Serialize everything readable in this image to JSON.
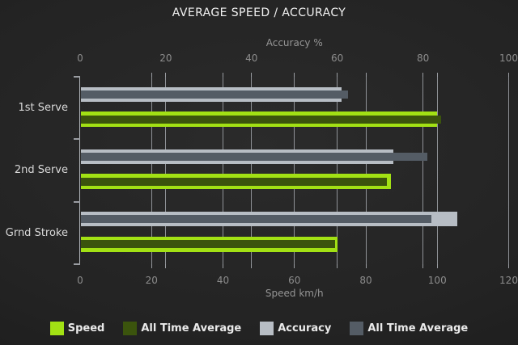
{
  "title": "AVERAGE SPEED / ACCURACY",
  "chart_data": {
    "type": "bar",
    "orientation": "horizontal",
    "title": "AVERAGE SPEED / ACCURACY",
    "categories": [
      "1st Serve",
      "2nd Serve",
      "Grnd Stroke"
    ],
    "axes": {
      "top": {
        "label": "Accuracy %",
        "min": 0,
        "max": 100,
        "ticks": [
          0,
          20,
          40,
          60,
          80,
          100
        ]
      },
      "bottom": {
        "label": "Speed km/h",
        "min": 0,
        "max": 120,
        "ticks": [
          0,
          20,
          40,
          60,
          80,
          100,
          120
        ]
      }
    },
    "series": [
      {
        "key": "speed",
        "name": "Speed",
        "axis": "bottom",
        "style": "base",
        "color": "#a2e114",
        "values": [
          100,
          87,
          72
        ]
      },
      {
        "key": "speed-ata",
        "name": "All Time Average",
        "axis": "bottom",
        "style": "overlay",
        "color": "#3b540d",
        "values": [
          101,
          86,
          71.5
        ]
      },
      {
        "key": "accuracy",
        "name": "Accuracy",
        "axis": "top",
        "style": "base",
        "color": "#b7bdc4",
        "values": [
          61,
          73,
          88
        ]
      },
      {
        "key": "accuracy-ata",
        "name": "All Time Average",
        "axis": "top",
        "style": "overlay",
        "color": "#545c65",
        "values": [
          62.5,
          81,
          82
        ]
      }
    ],
    "legend": [
      {
        "label": "Speed",
        "color": "#a2e114"
      },
      {
        "label": "All Time Average",
        "color": "#3b540d"
      },
      {
        "label": "Accuracy",
        "color": "#b7bdc4"
      },
      {
        "label": "All Time Average",
        "color": "#545c65"
      }
    ],
    "grid": true,
    "legend_position": "bottom"
  },
  "colors": {
    "background": "#232323",
    "grid": "#8f9297",
    "axis": "#b2b6bb",
    "title_text": "#f1f1f1",
    "tick_label": "#8d8d8d",
    "axis_label": "#959595",
    "category_label": "#d8d8d8",
    "legend_text": "#eaeaea"
  }
}
